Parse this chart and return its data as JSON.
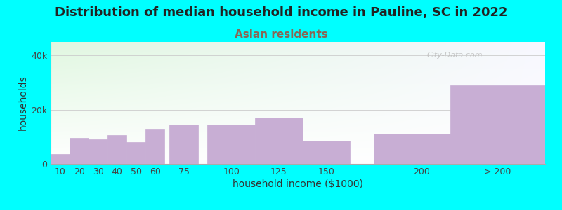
{
  "title": "Distribution of median household income in Pauline, SC in 2022",
  "subtitle": "Asian residents",
  "xlabel": "household income ($1000)",
  "ylabel": "households",
  "background_color": "#00FFFF",
  "bar_color": "#c8aed4",
  "bar_edgecolor": "#ffffff",
  "categories": [
    "10",
    "20",
    "30",
    "40",
    "50",
    "60",
    "75",
    "100",
    "125",
    "150",
    "200",
    "> 200"
  ],
  "values": [
    3500,
    9500,
    9000,
    10500,
    8000,
    13000,
    14500,
    14500,
    17000,
    8500,
    11000,
    29000
  ],
  "bar_widths": [
    1,
    1,
    1,
    1,
    1,
    1,
    1.5,
    2.5,
    2.5,
    2.5,
    5,
    5
  ],
  "bar_positions": [
    10,
    20,
    30,
    40,
    50,
    60,
    75,
    100,
    125,
    150,
    200,
    240
  ],
  "yticks": [
    0,
    20000,
    40000
  ],
  "ytick_labels": [
    "0",
    "20k",
    "40k"
  ],
  "ylim": [
    0,
    45000
  ],
  "xlim": [
    5,
    265
  ],
  "title_fontsize": 13,
  "subtitle_fontsize": 11,
  "subtitle_color": "#886655",
  "axis_label_fontsize": 10,
  "tick_fontsize": 9,
  "title_color": "#222222",
  "watermark": "City-Data.com"
}
